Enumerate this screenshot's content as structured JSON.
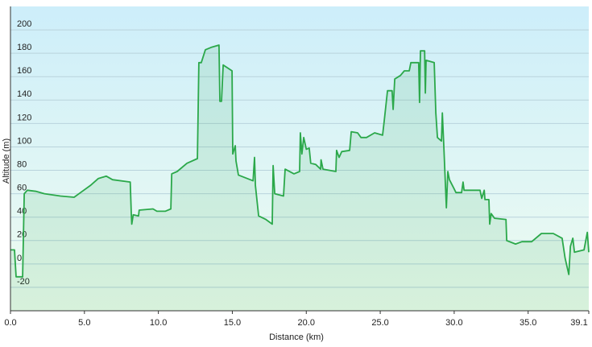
{
  "chart_data": {
    "type": "area",
    "xlabel": "Distance  (km)",
    "ylabel": "Altitude (m)",
    "x": [
      0,
      0.27,
      0.38,
      0.82,
      0.93,
      1.14,
      1.74,
      2.29,
      3.38,
      4.3,
      4.74,
      5.4,
      5.94,
      6.48,
      6.9,
      8.1,
      8.17,
      8.2,
      8.3,
      8.66,
      8.7,
      9.64,
      9.9,
      10.46,
      10.84,
      10.9,
      11.27,
      11.93,
      12.64,
      12.74,
      12.9,
      13.18,
      13.56,
      14.1,
      14.16,
      14.27,
      14.38,
      14.98,
      15.03,
      15.2,
      15.25,
      15.41,
      16.4,
      16.5,
      16.56,
      16.78,
      17.27,
      17.7,
      17.76,
      17.87,
      18.46,
      18.57,
      19.17,
      19.55,
      19.6,
      19.7,
      19.83,
      20.0,
      20.2,
      20.3,
      20.64,
      20.97,
      21.0,
      21.13,
      22.0,
      22.05,
      22.22,
      22.4,
      22.93,
      23.04,
      23.47,
      23.7,
      24.07,
      24.62,
      25.16,
      25.27,
      25.49,
      25.8,
      25.87,
      25.98,
      26.36,
      26.63,
      26.96,
      27.07,
      27.6,
      27.66,
      27.72,
      28.0,
      28.05,
      28.1,
      28.65,
      28.76,
      28.87,
      29.14,
      29.2,
      29.3,
      29.47,
      29.57,
      29.68,
      29.96,
      30.12,
      30.5,
      30.6,
      30.67,
      31.43,
      31.65,
      31.75,
      31.86,
      32.03,
      32.08,
      32.35,
      32.4,
      32.5,
      32.73,
      33.5,
      33.55,
      34.15,
      34.58,
      35.24,
      35.9,
      36.7,
      37.3,
      37.5,
      37.75,
      37.86,
      38.02,
      38.13,
      38.78,
      39.0,
      39.1
    ],
    "series": [
      {
        "color": "#2ba84a",
        "values": [
          12,
          12,
          -11,
          -11,
          60,
          63,
          62,
          60,
          58,
          57,
          61,
          67,
          73,
          75,
          72,
          70,
          43,
          34,
          42,
          41,
          46,
          47,
          45,
          45,
          47,
          77,
          79,
          86,
          90,
          172,
          172,
          183,
          185,
          187,
          139,
          139,
          170,
          165,
          94,
          101,
          88,
          76,
          71,
          91,
          67,
          41,
          38,
          34,
          84,
          60,
          58,
          81,
          77,
          79,
          112,
          94,
          108,
          98,
          99,
          86,
          85,
          81,
          89,
          81,
          79,
          97,
          91,
          96,
          97,
          113,
          112,
          108,
          108,
          112,
          110,
          122,
          148,
          148,
          132,
          158,
          161,
          165,
          165,
          172,
          172,
          138,
          182,
          182,
          146,
          174,
          172,
          129,
          108,
          105,
          129,
          101,
          48,
          79,
          72,
          65,
          61,
          61,
          70,
          63,
          63,
          63,
          63,
          56,
          63,
          55,
          55,
          34,
          43,
          39,
          38,
          20,
          17,
          19,
          19,
          26,
          26,
          22,
          5,
          -9,
          15,
          22,
          10,
          12,
          27,
          10
        ]
      }
    ],
    "xlim": [
      0,
      39.1
    ],
    "ylim": [
      -40,
      220
    ],
    "xticks": [
      {
        "value": 0,
        "label": "0.0"
      },
      {
        "value": 5,
        "label": "5.0"
      },
      {
        "value": 10,
        "label": "10.0"
      },
      {
        "value": 15,
        "label": "15.0"
      },
      {
        "value": 20,
        "label": "20.0"
      },
      {
        "value": 25,
        "label": "25.0"
      },
      {
        "value": 30,
        "label": "30.0"
      },
      {
        "value": 35,
        "label": "35.0"
      },
      39.1
    ],
    "yticks": [
      -20,
      0,
      20,
      40,
      60,
      80,
      100,
      120,
      140,
      160,
      180,
      200
    ],
    "grid": true
  }
}
